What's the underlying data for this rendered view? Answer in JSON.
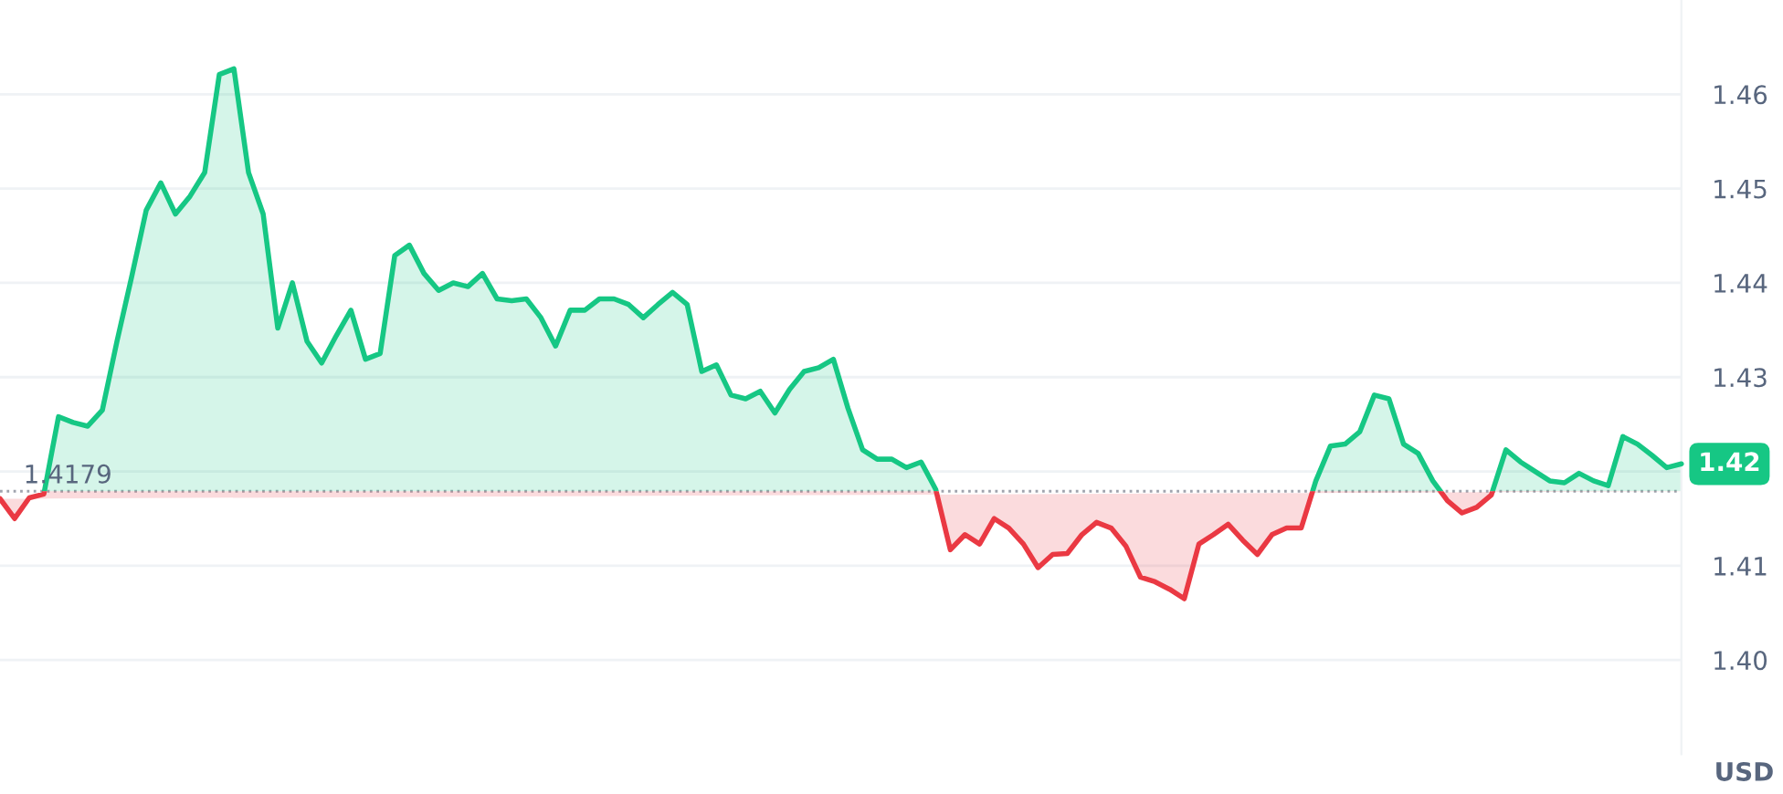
{
  "chart_data": {
    "type": "area",
    "categories": [
      null,
      null,
      null,
      null,
      null,
      null,
      null,
      null,
      null,
      null,
      null,
      null,
      null,
      null,
      null,
      null,
      null,
      null,
      null,
      null,
      null,
      null,
      null,
      null,
      null,
      null,
      null,
      null,
      null,
      null,
      null,
      null,
      null,
      null,
      null,
      null,
      null,
      null,
      null,
      null,
      null,
      null,
      null,
      null,
      null,
      null,
      null,
      null,
      null,
      null,
      null,
      null,
      null,
      null,
      null,
      null,
      null,
      null,
      null,
      null,
      null,
      null,
      null,
      null,
      null,
      null,
      null,
      null,
      null,
      null,
      null,
      null,
      null,
      null,
      null,
      null,
      null,
      null,
      null,
      null,
      null,
      null,
      null,
      null,
      null,
      null,
      null,
      null,
      null,
      null,
      null,
      null,
      null,
      null,
      null,
      null,
      null,
      null,
      null,
      null,
      null,
      null,
      null,
      null,
      null,
      null,
      null,
      null,
      null,
      null,
      null,
      null,
      null,
      null,
      null,
      null
    ],
    "series": [
      {
        "color": "#16c784",
        "values": [
          1.4171,
          1.415,
          1.4172,
          1.4176,
          1.4258,
          1.4252,
          1.4248,
          1.4265,
          1.4338,
          1.4406,
          1.4477,
          1.4506,
          1.4473,
          1.4492,
          1.4517,
          1.4621,
          1.4627,
          1.4517,
          1.4473,
          1.4352,
          1.44,
          1.4338,
          1.4315,
          1.4344,
          1.4371,
          1.4319,
          1.4325,
          1.4429,
          1.444,
          1.441,
          1.4392,
          1.44,
          1.4396,
          1.441,
          1.4383,
          1.4381,
          1.4383,
          1.4363,
          1.4333,
          1.4371,
          1.4371,
          1.4383,
          1.4383,
          1.4377,
          1.4363,
          1.4377,
          1.439,
          1.4377,
          1.4306,
          1.4313,
          1.4281,
          1.4277,
          1.4285,
          1.4262,
          1.4287,
          1.4306,
          1.431,
          1.4319,
          1.4267,
          1.4223,
          1.4213,
          1.4213,
          1.4204,
          1.421,
          1.4181,
          1.4117,
          1.4133,
          1.4123,
          1.415,
          1.414,
          1.4123,
          1.4098,
          1.4112,
          1.4113,
          1.4133,
          1.4146,
          1.414,
          1.4121,
          1.4088,
          1.4083,
          1.4075,
          1.4065,
          1.4123,
          1.4133,
          1.4144,
          1.4127,
          1.4112,
          1.4133,
          1.414,
          1.414,
          1.419,
          1.4227,
          1.4229,
          1.4242,
          1.4281,
          1.4277,
          1.4229,
          1.4219,
          1.419,
          1.4169,
          1.4156,
          1.4162,
          1.4175,
          1.4223,
          1.421,
          1.42,
          1.419,
          1.4188,
          1.4198,
          1.419,
          1.4185,
          1.4237,
          1.4229,
          1.4217,
          1.4204,
          1.4208
        ]
      }
    ],
    "ylim": [
      1.39,
      1.47
    ],
    "yticks": [
      {
        "value": 1.4,
        "label": "1.40"
      },
      1.41,
      1.42,
      1.43,
      1.44,
      1.45,
      1.46
    ],
    "ref_lines": [
      {
        "axis": "y",
        "value": 1.4179,
        "label": "1.4179",
        "line_style": "dotted",
        "color": "#a0a4ae"
      }
    ],
    "annotations": [
      "1.42",
      "USD"
    ],
    "grid": "y",
    "legend": false,
    "tick_labels": "y"
  }
}
